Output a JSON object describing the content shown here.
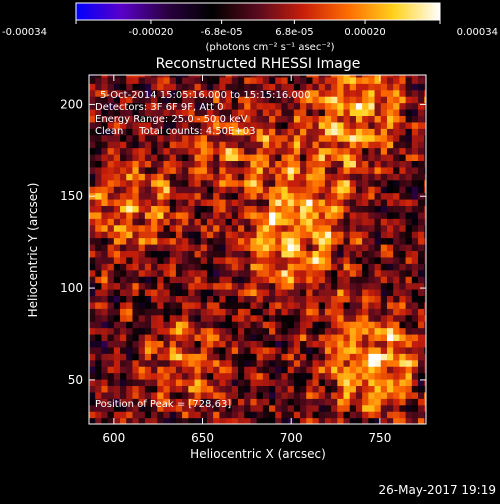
{
  "chart_data": {
    "type": "heatmap",
    "title": "Reconstructed RHESSI Image",
    "xlabel": "Heliocentric X (arcsec)",
    "ylabel": "Heliocentric Y (arcsec)",
    "xlim": [
      586,
      776
    ],
    "ylim": [
      26,
      216
    ],
    "x_ticks": [
      "600",
      "650",
      "700",
      "750"
    ],
    "x_tick_values": [
      600,
      650,
      700,
      750
    ],
    "y_ticks": [
      "50",
      "100",
      "150",
      "200"
    ],
    "y_tick_values": [
      50,
      100,
      150,
      200
    ],
    "colorbar": {
      "range": [
        -0.00034,
        0.00034
      ],
      "tick_labels": [
        "-0.00034",
        "-0.00020",
        "-6.8e-05",
        "6.8e-05",
        "0.00020",
        "0.00034"
      ],
      "tick_values": [
        -0.00034,
        -0.0002,
        -6.8e-05,
        6.8e-05,
        0.0002,
        0.00034
      ],
      "units_label": "(photons cm⁻² s⁻¹ asec⁻²)",
      "colormap": [
        "#0000ff",
        "#5a00c8",
        "#2a0040",
        "#000000",
        "#5a0a1e",
        "#c81e0a",
        "#ff6e00",
        "#ffd21e",
        "#ffffff"
      ]
    },
    "annotations": {
      "time_range": "5-Oct-2014 15:05:16.000 to 15:15:16.000",
      "detectors": "Detectors: 3F 6F 9F, Att 0",
      "energy_range": "Energy Range: 25.0 - 50.0 keV",
      "clean": "Clean     Total counts: 4.50E+03",
      "peak": "Position of Peak = [728,63]"
    },
    "peak_position": [
      728,
      63
    ],
    "emission_sources": [
      {
        "x": 700,
        "y": 125,
        "strength": 1.0
      },
      {
        "x": 745,
        "y": 60,
        "strength": 1.0
      },
      {
        "x": 740,
        "y": 200,
        "strength": 0.85
      },
      {
        "x": 610,
        "y": 145,
        "strength": 0.7
      },
      {
        "x": 640,
        "y": 60,
        "strength": 0.6
      },
      {
        "x": 665,
        "y": 175,
        "strength": 0.55
      },
      {
        "x": 715,
        "y": 165,
        "strength": 0.5
      }
    ]
  },
  "footer": {
    "timestamp": "26-May-2017 19:19"
  }
}
